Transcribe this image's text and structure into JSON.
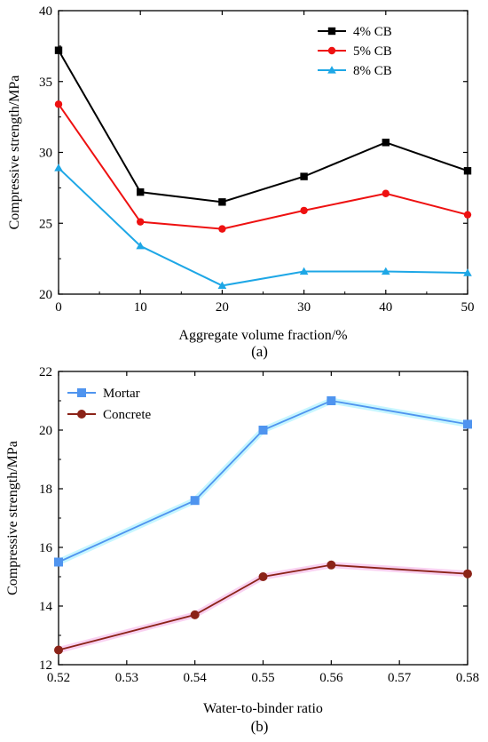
{
  "chart_data": [
    {
      "type": "line",
      "panel_label": "(a)",
      "xlabel": "Aggregate volume fraction/%",
      "ylabel": "Compressive strength/MPa",
      "xlim": [
        0,
        50
      ],
      "ylim": [
        20,
        40
      ],
      "xticks": [
        0,
        10,
        20,
        30,
        40,
        50
      ],
      "yticks": [
        20,
        25,
        30,
        35,
        40
      ],
      "grid": false,
      "legend_position": "top-right",
      "x": [
        0,
        10,
        20,
        30,
        40,
        50
      ],
      "series": [
        {
          "name": "4% CB",
          "color": "#000000",
          "marker": "square",
          "values": [
            37.2,
            27.2,
            26.5,
            28.3,
            30.7,
            28.7
          ]
        },
        {
          "name": "5% CB",
          "color": "#ee1111",
          "marker": "circle",
          "values": [
            33.4,
            25.1,
            24.6,
            25.9,
            27.1,
            25.6
          ]
        },
        {
          "name": "8% CB",
          "color": "#1ea7e6",
          "marker": "triangle",
          "values": [
            28.9,
            23.4,
            20.6,
            21.6,
            21.6,
            21.5
          ]
        }
      ]
    },
    {
      "type": "line",
      "panel_label": "(b)",
      "xlabel": "Water-to-binder ratio",
      "ylabel": "Compressive strength/MPa",
      "xlim": [
        0.52,
        0.58
      ],
      "ylim": [
        12,
        22
      ],
      "xticks": [
        0.52,
        0.53,
        0.54,
        0.55,
        0.56,
        0.57,
        0.58
      ],
      "yticks": [
        12,
        14,
        16,
        18,
        20,
        22
      ],
      "grid": false,
      "legend_position": "top-left",
      "x": [
        0.52,
        0.54,
        0.55,
        0.56,
        0.58
      ],
      "series": [
        {
          "name": "Mortar",
          "color": "#4f94ef",
          "marker": "square",
          "values": [
            15.5,
            17.6,
            20.0,
            21.0,
            20.2
          ]
        },
        {
          "name": "Concrete",
          "color": "#8b2318",
          "marker": "circle",
          "values": [
            12.5,
            13.7,
            15.0,
            15.4,
            15.1
          ]
        }
      ]
    }
  ]
}
